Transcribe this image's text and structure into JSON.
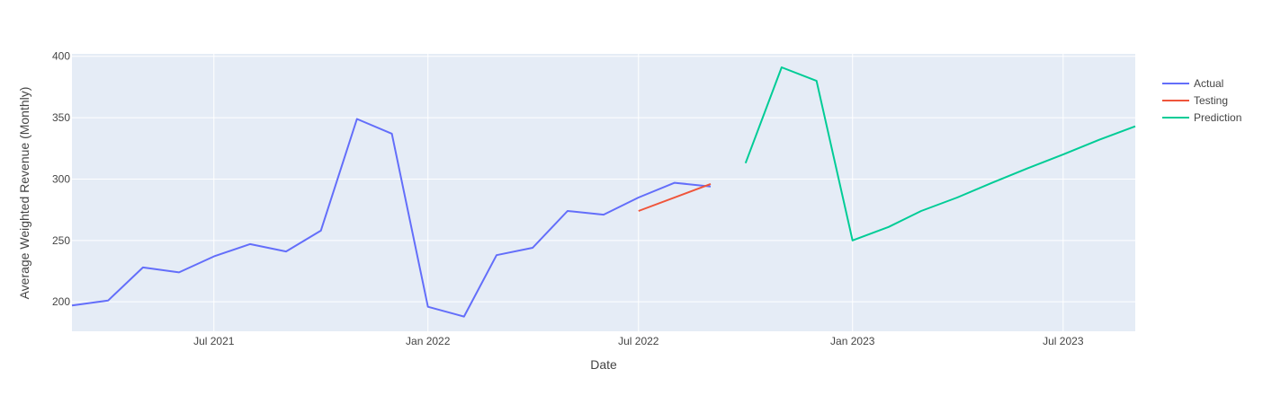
{
  "chart_data": {
    "type": "line",
    "xlabel": "Date",
    "ylabel": "Average Weighted Revenue (Monthly)",
    "xlim": [
      "2021-03-01",
      "2023-09-01"
    ],
    "ylim": [
      176,
      402
    ],
    "x_ticks": [
      {
        "date": "2021-07-01",
        "label": "Jul 2021"
      },
      {
        "date": "2022-01-01",
        "label": "Jan 2022"
      },
      {
        "date": "2022-07-01",
        "label": "Jul 2022"
      },
      {
        "date": "2023-01-01",
        "label": "Jan 2023"
      },
      {
        "date": "2023-07-01",
        "label": "Jul 2023"
      }
    ],
    "y_ticks": [
      200,
      250,
      300,
      350,
      400
    ],
    "grid": true,
    "legend_position": "top-right",
    "plot_bg": "#e5ecf6",
    "series": [
      {
        "name": "Actual",
        "color": "#636efa",
        "x": [
          "2021-03-01",
          "2021-04-01",
          "2021-05-01",
          "2021-06-01",
          "2021-07-01",
          "2021-08-01",
          "2021-09-01",
          "2021-10-01",
          "2021-11-01",
          "2021-12-01",
          "2022-01-01",
          "2022-02-01",
          "2022-03-01",
          "2022-04-01",
          "2022-05-01",
          "2022-06-01",
          "2022-07-01",
          "2022-08-01",
          "2022-09-01"
        ],
        "y": [
          197,
          201,
          228,
          224,
          237,
          247,
          241,
          258,
          349,
          337,
          196,
          188,
          238,
          244,
          274,
          271,
          285,
          297,
          294
        ]
      },
      {
        "name": "Testing",
        "color": "#ef553b",
        "x": [
          "2022-07-01",
          "2022-09-01"
        ],
        "y": [
          274,
          296
        ]
      },
      {
        "name": "Prediction",
        "color": "#00cc96",
        "x": [
          "2022-10-01",
          "2022-11-01",
          "2022-12-01",
          "2023-01-01",
          "2023-02-01",
          "2023-03-01",
          "2023-04-01",
          "2023-05-01",
          "2023-06-01",
          "2023-07-01",
          "2023-08-01",
          "2023-09-01"
        ],
        "y": [
          313,
          391,
          380,
          250,
          261,
          274,
          285,
          297,
          309,
          320,
          332,
          343
        ]
      }
    ]
  }
}
